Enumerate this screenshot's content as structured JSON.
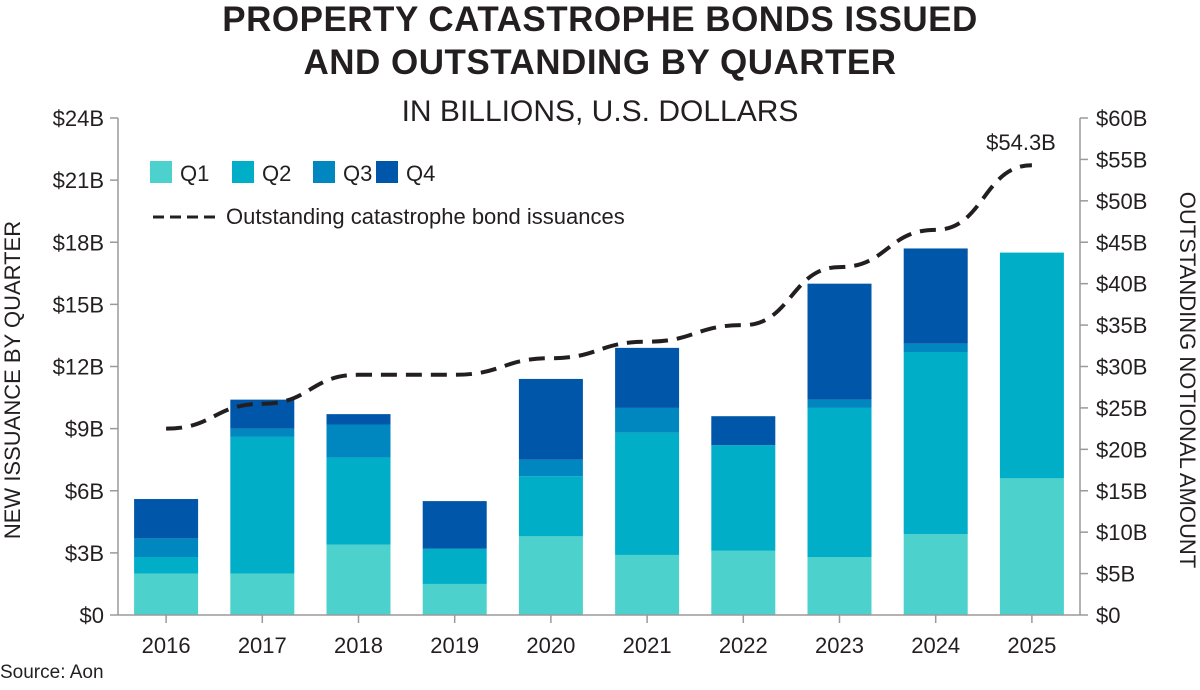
{
  "title_line1": "PROPERTY CATASTROPHE BONDS ISSUED",
  "title_line2": "AND OUTSTANDING BY QUARTER",
  "subtitle": "IN BILLIONS, U.S. DOLLARS",
  "source": "Source: Aon",
  "colors": {
    "Q1": "#4cd1cc",
    "Q2": "#00aec7",
    "Q3": "#0087bf",
    "Q4": "#0056a8",
    "line": "#231f20",
    "axis": "#9a9a9a"
  },
  "chart_data": {
    "type": "bar",
    "stacked": true,
    "categories": [
      "2016",
      "2017",
      "2018",
      "2019",
      "2020",
      "2021",
      "2022",
      "2023",
      "2024",
      "2025"
    ],
    "series": [
      {
        "name": "Q1",
        "values": [
          2.0,
          2.0,
          3.4,
          1.5,
          3.8,
          2.9,
          3.1,
          2.8,
          3.9,
          6.6
        ]
      },
      {
        "name": "Q2",
        "values": [
          0.8,
          6.6,
          4.2,
          1.7,
          2.9,
          5.9,
          5.1,
          7.2,
          8.8,
          10.9
        ]
      },
      {
        "name": "Q3",
        "values": [
          0.9,
          0.4,
          1.6,
          0.0,
          0.8,
          1.2,
          0.0,
          0.4,
          0.4,
          0.0
        ]
      },
      {
        "name": "Q4",
        "values": [
          1.9,
          1.4,
          0.5,
          2.3,
          3.9,
          2.9,
          1.4,
          5.6,
          4.6,
          0.0
        ]
      }
    ],
    "line_series": {
      "name": "Outstanding catastrophe bond issuances",
      "axis": "right",
      "style": "dashed",
      "x": [
        2016,
        2017,
        2018,
        2019,
        2020,
        2021,
        2022,
        2023,
        2024,
        2025
      ],
      "values": [
        22.5,
        25.5,
        29.0,
        29.0,
        31.0,
        33.0,
        35.0,
        42.0,
        46.5,
        54.3
      ]
    },
    "annotation": "$54.3B",
    "ylabel": "NEW ISSUANCE BY QUARTER",
    "ylabel_right": "OUTSTANDING NOTIONAL AMOUNT",
    "ylim": [
      0,
      24
    ],
    "ylim_right": [
      0,
      60
    ],
    "yticks": [
      "$0",
      "$3B",
      "$6B",
      "$9B",
      "$12B",
      "$15B",
      "$18B",
      "$21B",
      "$24B"
    ],
    "yticks_right": [
      "$0",
      "$5B",
      "$10B",
      "$15B",
      "$20B",
      "$25B",
      "$30B",
      "$35B",
      "$40B",
      "$45B",
      "$50B",
      "$55B",
      "$60B"
    ],
    "legend_position": "top-left",
    "grid": false
  }
}
